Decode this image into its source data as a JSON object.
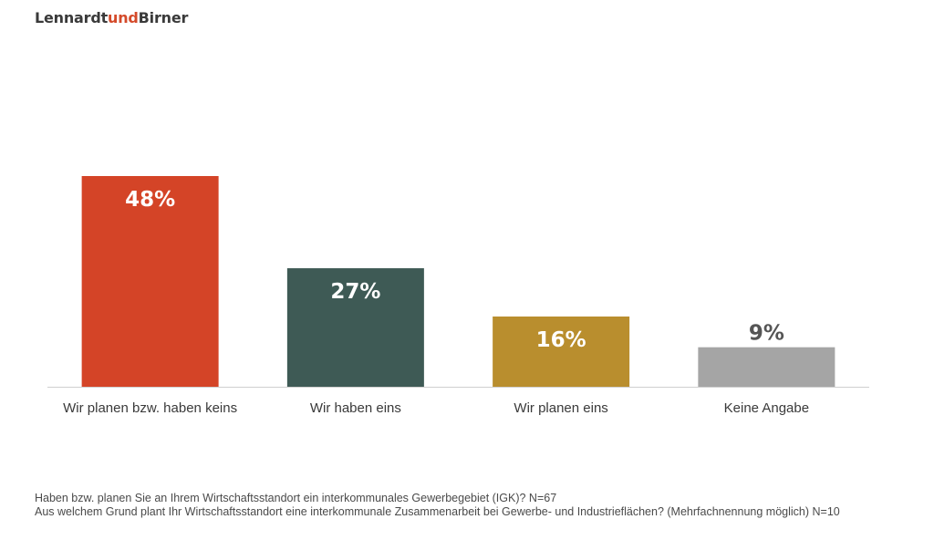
{
  "brand": {
    "part1": "Lennardt",
    "part2": "und",
    "part3": "Birner",
    "accent_color": "#d44a2a"
  },
  "chart_data": {
    "type": "bar",
    "categories": [
      "Wir planen bzw. haben keins",
      "Wir haben eins",
      "Wir planen eins",
      "Keine Angabe"
    ],
    "values": [
      48,
      27,
      16,
      9
    ],
    "value_labels": [
      "48%",
      "27%",
      "16%",
      "9%"
    ],
    "colors": [
      "#d44427",
      "#3e5a55",
      "#b98e2e",
      "#a5a5a5"
    ],
    "label_colors": [
      "#ffffff",
      "#ffffff",
      "#ffffff",
      "#555555"
    ],
    "ylim": [
      0,
      48
    ],
    "grid": false,
    "legend": "none"
  },
  "footnote": {
    "line1": "Haben bzw. planen Sie an Ihrem Wirtschaftsstandort ein interkommunales Gewerbegebiet (IGK)? N=67",
    "line2": "Aus welchem Grund plant Ihr Wirtschaftsstandort eine interkommunale Zusammenarbeit bei Gewerbe- und Industrieflächen? (Mehrfachnennung möglich) N=10"
  }
}
